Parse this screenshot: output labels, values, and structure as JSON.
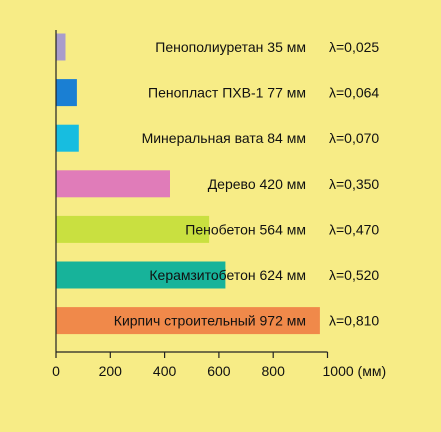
{
  "chart_data": {
    "type": "bar",
    "orientation": "horizontal",
    "categories": [
      "Пенополиуретан 35 мм",
      "Пенопласт ПХВ-1 77 мм",
      "Минеральная вата 84 мм",
      "Дерево 420 мм",
      "Пенобетон 564 мм",
      "Керамзитобетон 624 мм",
      "Кирпич строительный 972 мм"
    ],
    "values": [
      35,
      77,
      84,
      420,
      564,
      624,
      972
    ],
    "lambda_labels": [
      "λ=0,025",
      "λ=0,064",
      "λ=0,070",
      "λ=0,350",
      "λ=0,470",
      "λ=0,520",
      "λ=0,810"
    ],
    "bar_colors": [
      "#a99ccc",
      "#1a7fd3",
      "#17bde0",
      "#e07cb9",
      "#c9e040",
      "#17b39a",
      "#f0894a"
    ],
    "xlim": [
      0,
      1000
    ],
    "xticks": [
      "0",
      "200",
      "400",
      "600",
      "800",
      "1000 (мм)"
    ],
    "grid": false,
    "axis_color": "#222222"
  }
}
